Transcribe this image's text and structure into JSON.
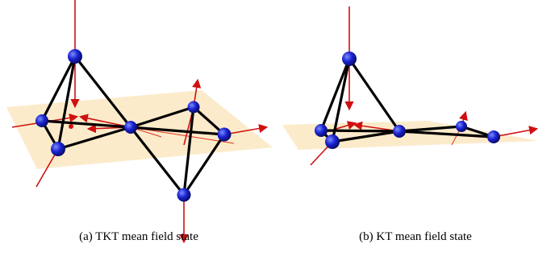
{
  "figures": [
    {
      "caption": "(a) TKT mean field state"
    },
    {
      "caption": "(b) KT mean field state"
    }
  ]
}
